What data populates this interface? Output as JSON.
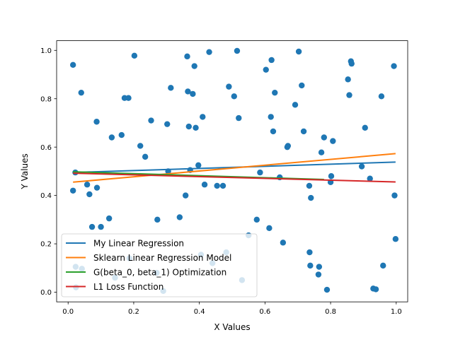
{
  "chart_data": {
    "type": "scatter",
    "title": "",
    "xlabel": "X Values",
    "ylabel": "Y Values",
    "xlim": [
      -0.035,
      1.035
    ],
    "ylim": [
      -0.04,
      1.04
    ],
    "grid": false,
    "xticks": [
      "0.0",
      "0.2",
      "0.4",
      "0.6",
      "0.8",
      "1.0"
    ],
    "yticks": [
      "0.0",
      "0.2",
      "0.4",
      "0.6",
      "0.8",
      "1.0"
    ],
    "legend_position": "lower-left",
    "scatter": {
      "color": "#1f77b4",
      "x": [
        0.015,
        0.015,
        0.022,
        0.023,
        0.024,
        0.04,
        0.042,
        0.058,
        0.065,
        0.073,
        0.087,
        0.088,
        0.1,
        0.125,
        0.133,
        0.143,
        0.163,
        0.172,
        0.184,
        0.187,
        0.202,
        0.22,
        0.235,
        0.253,
        0.27,
        0.272,
        0.29,
        0.302,
        0.305,
        0.313,
        0.34,
        0.358,
        0.363,
        0.365,
        0.368,
        0.372,
        0.38,
        0.385,
        0.389,
        0.397,
        0.405,
        0.41,
        0.416,
        0.43,
        0.44,
        0.454,
        0.472,
        0.482,
        0.49,
        0.506,
        0.515,
        0.52,
        0.53,
        0.55,
        0.575,
        0.585,
        0.603,
        0.613,
        0.618,
        0.62,
        0.625,
        0.63,
        0.645,
        0.655,
        0.668,
        0.67,
        0.692,
        0.703,
        0.712,
        0.718,
        0.735,
        0.736,
        0.738,
        0.74,
        0.763,
        0.765,
        0.772,
        0.78,
        0.789,
        0.8,
        0.802,
        0.807,
        0.853,
        0.857,
        0.862,
        0.864,
        0.895,
        0.905,
        0.92,
        0.93,
        0.938,
        0.955,
        0.96,
        0.993,
        0.995,
        0.998
      ],
      "y": [
        0.94,
        0.42,
        0.495,
        0.105,
        0.02,
        0.825,
        0.097,
        0.445,
        0.405,
        0.27,
        0.705,
        0.432,
        0.27,
        0.305,
        0.64,
        0.06,
        0.65,
        0.803,
        0.803,
        0.14,
        0.978,
        0.605,
        0.56,
        0.71,
        0.08,
        0.3,
        0.005,
        0.695,
        0.5,
        0.845,
        0.31,
        0.4,
        0.975,
        0.83,
        0.685,
        0.505,
        0.82,
        0.935,
        0.68,
        0.525,
        0.155,
        0.725,
        0.445,
        0.993,
        0.12,
        0.44,
        0.44,
        0.165,
        0.85,
        0.81,
        0.998,
        0.72,
        0.05,
        0.235,
        0.3,
        0.495,
        0.92,
        0.265,
        0.725,
        0.96,
        0.665,
        0.825,
        0.475,
        0.205,
        0.6,
        0.605,
        0.775,
        0.995,
        0.855,
        0.665,
        0.44,
        0.165,
        0.11,
        0.39,
        0.073,
        0.105,
        0.578,
        0.64,
        0.01,
        0.455,
        0.48,
        0.625,
        0.88,
        0.815,
        0.955,
        0.945,
        0.52,
        0.68,
        0.47,
        0.015,
        0.012,
        0.81,
        0.11,
        0.935,
        0.4,
        0.22
      ]
    },
    "series": [
      {
        "name": "My Linear Regression",
        "color": "#1f77b4",
        "x": [
          0.015,
          0.998
        ],
        "y": [
          0.495,
          0.538
        ]
      },
      {
        "name": "Sklearn Linear Regression Model",
        "color": "#ff7f0e",
        "x": [
          0.015,
          0.998
        ],
        "y": [
          0.455,
          0.573
        ]
      },
      {
        "name": "G(beta_0, beta_1) Optimization",
        "color": "#2ca02c",
        "x": [
          0.015,
          0.78
        ],
        "y": [
          0.498,
          0.466
        ]
      },
      {
        "name": "L1 Loss Function",
        "color": "#d62728",
        "x": [
          0.015,
          0.998
        ],
        "y": [
          0.492,
          0.456
        ]
      }
    ]
  }
}
